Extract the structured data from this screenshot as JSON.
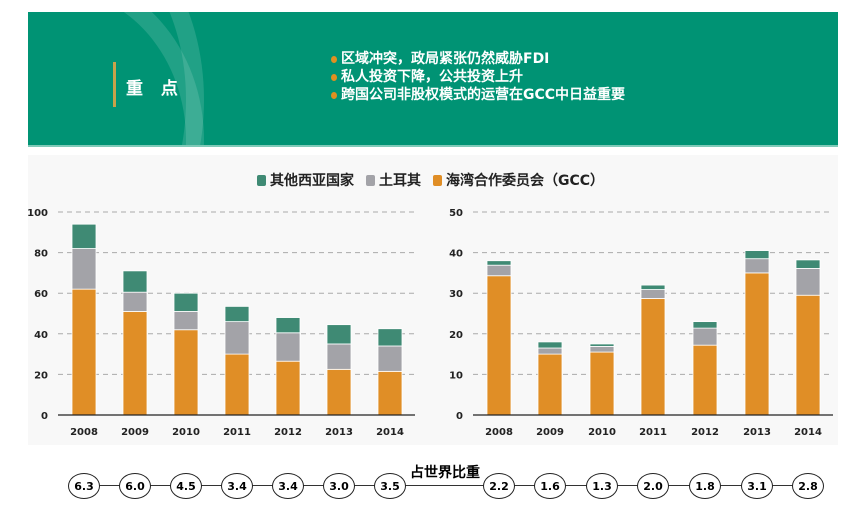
{
  "header": {
    "title": "重 点",
    "bullets": [
      "区域冲突，政局紧张仍然威胁FDI",
      "私人投资下降，公共投资上升",
      "跨国公司非股权模式的运营在GCC中日益重要"
    ]
  },
  "colors": {
    "gcc": "#e08e26",
    "turkey": "#a3a3a8",
    "other": "#3f8a74"
  },
  "chart_data": [
    {
      "type": "bar",
      "stacked": true,
      "categories": [
        "2008",
        "2009",
        "2010",
        "2011",
        "2012",
        "2013",
        "2014"
      ],
      "ylim": [
        0,
        100
      ],
      "yticks": [
        0,
        20,
        40,
        60,
        80,
        100
      ],
      "series": [
        {
          "name": "海湾合作委员会（GCC）",
          "values": [
            62,
            51,
            42,
            30,
            26.5,
            22.5,
            21.5
          ]
        },
        {
          "name": "土耳其",
          "values": [
            20,
            9.5,
            9,
            16,
            14,
            12.5,
            12.5
          ]
        },
        {
          "name": "其他西亚国家",
          "values": [
            12,
            10.5,
            9,
            7.5,
            7.5,
            9.5,
            8.5
          ]
        }
      ],
      "share_of_world": [
        "6.3",
        "6.0",
        "4.5",
        "3.4",
        "3.4",
        "3.0",
        "3.5"
      ]
    },
    {
      "type": "bar",
      "stacked": true,
      "categories": [
        "2008",
        "2009",
        "2010",
        "2011",
        "2012",
        "2013",
        "2014"
      ],
      "ylim": [
        0,
        50
      ],
      "yticks": [
        0,
        10,
        20,
        30,
        40,
        50
      ],
      "series": [
        {
          "name": "海湾合作委员会（GCC）",
          "values": [
            34.3,
            15,
            15.5,
            28.7,
            17.2,
            35,
            29.5
          ]
        },
        {
          "name": "土耳其",
          "values": [
            2.6,
            1.5,
            1.4,
            2.2,
            4.2,
            3.5,
            6.6
          ]
        },
        {
          "name": "其他西亚国家",
          "values": [
            1.1,
            1.5,
            0.6,
            1.1,
            1.6,
            2,
            2.1
          ]
        }
      ],
      "share_of_world": [
        "2.2",
        "1.6",
        "1.3",
        "2.0",
        "1.8",
        "3.1",
        "2.8"
      ]
    }
  ],
  "legend": [
    "其他西亚国家",
    "土耳其",
    "海湾合作委员会（GCC）"
  ],
  "share_label": "占世界比重"
}
